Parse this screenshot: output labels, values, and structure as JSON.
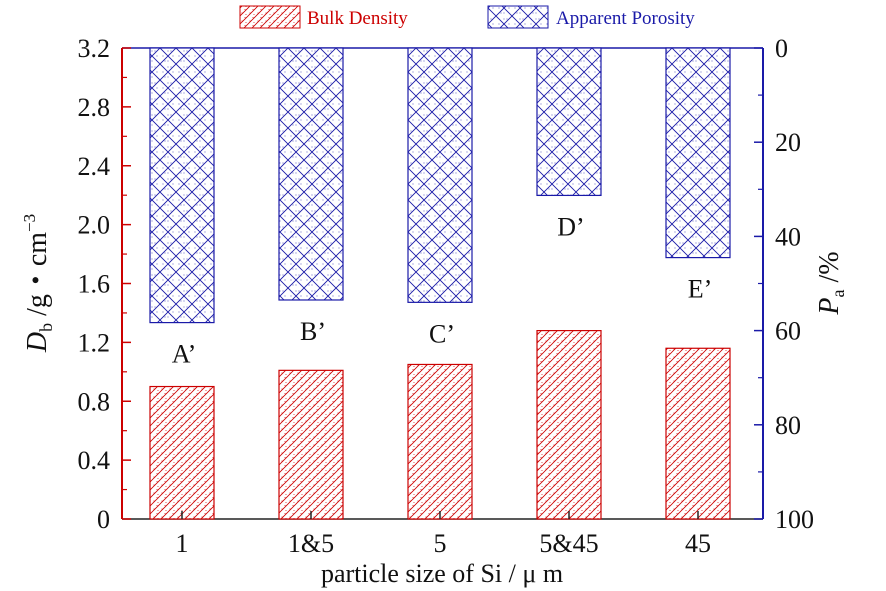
{
  "chart_data": {
    "type": "bar",
    "xlabel": "particle size of Si / μ m",
    "ylabel_left": {
      "main": "D",
      "sub": "b",
      "rest": " /g・cm",
      "sup": "−3"
    },
    "ylabel_right": {
      "main": "P",
      "sub": "a",
      "rest": " /%"
    },
    "categories": [
      "1",
      "1&5",
      "5",
      "5&45",
      "45"
    ],
    "left_axis": {
      "min": 0,
      "max": 3.2,
      "ticks": [
        "0",
        "0.4",
        "0.8",
        "1.2",
        "1.6",
        "2.0",
        "2.4",
        "2.8",
        "3.2"
      ],
      "color": "#cc0000"
    },
    "right_axis": {
      "min": 0,
      "max": 100,
      "inverted": true,
      "ticks": [
        "0",
        "20",
        "40",
        "60",
        "80",
        "100"
      ],
      "color": "#1a1aa8"
    },
    "series": [
      {
        "name": "Bulk Density",
        "axis": "left",
        "color": "#cc0000",
        "values": [
          0.9,
          1.01,
          1.05,
          1.28,
          1.16
        ]
      },
      {
        "name": "Apparent Porosity",
        "axis": "right",
        "color": "#1a1aa8",
        "values": [
          58.3,
          53.5,
          54.0,
          31.3,
          44.5
        ],
        "labels": [
          "A’",
          "B’",
          "C’",
          "D’",
          "E’"
        ]
      }
    ],
    "legend_position": "top"
  }
}
